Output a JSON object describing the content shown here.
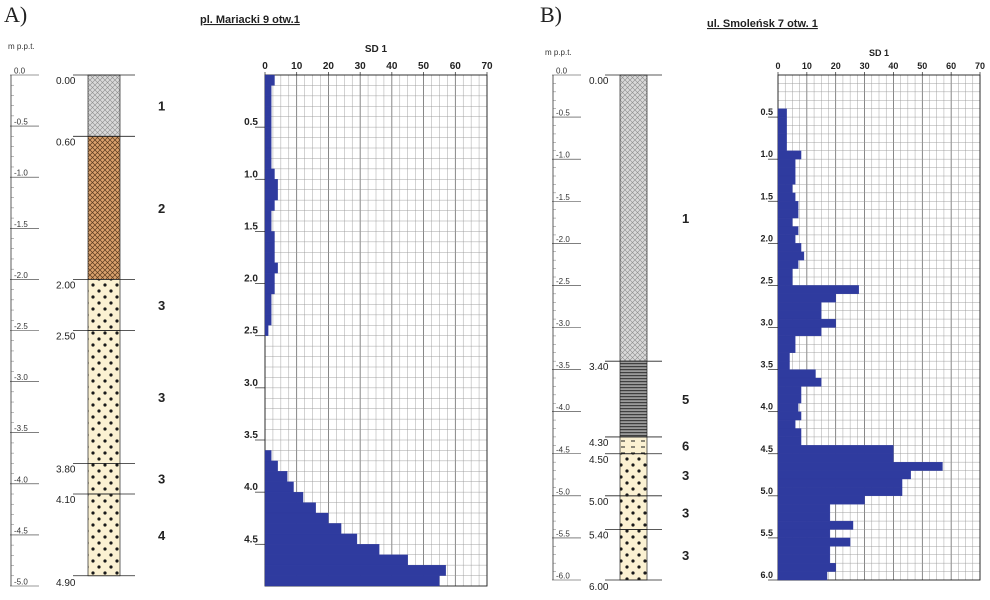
{
  "panels": [
    {
      "label": "A)",
      "title": "pl. Mariacki 9  otw.1",
      "scale_unit": "m p.p.t.",
      "depth_max": 5.0,
      "depth_ticks": [
        "0.0",
        "-0.5",
        "-1.0",
        "-1.5",
        "-2.0",
        "-2.5",
        "-3.0",
        "-3.5",
        "-4.0",
        "-4.5",
        "-5.0"
      ],
      "layers": [
        {
          "top": 0.0,
          "bottom": 0.6,
          "pattern": "gray-cross",
          "top_label": "0.00",
          "number": "1"
        },
        {
          "top": 0.6,
          "bottom": 2.0,
          "pattern": "brown-cross",
          "top_label": "0.60",
          "number": "2"
        },
        {
          "top": 2.0,
          "bottom": 2.5,
          "pattern": "sand-dots",
          "top_label": "2.00",
          "number": "3"
        },
        {
          "top": 2.5,
          "bottom": 3.8,
          "pattern": "sand-dots",
          "top_label": "2.50",
          "number": "3"
        },
        {
          "top": 3.8,
          "bottom": 4.1,
          "pattern": "sand-dots",
          "top_label": "3.80",
          "number": "3"
        },
        {
          "top": 4.1,
          "bottom": 4.9,
          "pattern": "sand-dots",
          "top_label": "4.10",
          "number": "4"
        }
      ],
      "bottom_label": "4.90"
    },
    {
      "label": "B)",
      "title": "ul. Smoleńsk 7  otw. 1",
      "scale_unit": "m p.p.t.",
      "depth_max": 6.0,
      "depth_ticks": [
        "0.0",
        "-0.5",
        "-1.0",
        "-1.5",
        "-2.0",
        "-2.5",
        "-3.0",
        "-3.5",
        "-4.0",
        "-4.5",
        "-5.0",
        "-5.5",
        "-6.0"
      ],
      "layers": [
        {
          "top": 0.0,
          "bottom": 3.4,
          "pattern": "gray-cross",
          "top_label": "0.00",
          "number": "1"
        },
        {
          "top": 3.4,
          "bottom": 4.3,
          "pattern": "gray-lines",
          "top_label": "3.40",
          "number": "5"
        },
        {
          "top": 4.3,
          "bottom": 4.5,
          "pattern": "dash-sand",
          "top_label": "4.30",
          "number": "6"
        },
        {
          "top": 4.5,
          "bottom": 5.0,
          "pattern": "sand-dots",
          "top_label": "4.50",
          "number": "3"
        },
        {
          "top": 5.0,
          "bottom": 5.4,
          "pattern": "sand-dots",
          "top_label": "5.00",
          "number": "3"
        },
        {
          "top": 5.4,
          "bottom": 6.0,
          "pattern": "sand-dots",
          "top_label": "5.40",
          "number": "3"
        }
      ],
      "bottom_label": "6.00"
    }
  ],
  "colors": {
    "bar": "#2f3b9f",
    "grid": "#8a8a8a",
    "gray_fill": "#d9d9d9",
    "brown_fill": "#d9a16d",
    "sand_fill": "#fbf1d2",
    "lines_fill": "#4d4d4d"
  },
  "chart_data": [
    {
      "type": "bar",
      "orientation": "horizontal",
      "title": "SD 1",
      "xlim": [
        0,
        70
      ],
      "x_ticks": [
        "0",
        "10",
        "20",
        "30",
        "40",
        "50",
        "60",
        "70"
      ],
      "ylim": [
        0,
        4.9
      ],
      "y_ticks": [
        "0.5",
        "1.0",
        "1.5",
        "2.0",
        "2.5",
        "3.0",
        "3.5",
        "4.0",
        "4.5"
      ],
      "depth": [
        0.0,
        0.1,
        0.2,
        0.3,
        0.4,
        0.5,
        0.6,
        0.7,
        0.8,
        0.9,
        1.0,
        1.1,
        1.2,
        1.3,
        1.4,
        1.5,
        1.6,
        1.7,
        1.8,
        1.9,
        2.0,
        2.1,
        2.2,
        2.3,
        2.4,
        2.5,
        2.6,
        2.7,
        2.8,
        2.9,
        3.0,
        3.1,
        3.2,
        3.3,
        3.4,
        3.5,
        3.6,
        3.7,
        3.8,
        3.9,
        4.0,
        4.1,
        4.2,
        4.3,
        4.4,
        4.5,
        4.6,
        4.7,
        4.8
      ],
      "values": [
        3,
        2,
        2,
        2,
        2,
        2,
        2,
        2,
        2,
        3,
        4,
        4,
        3,
        2,
        2,
        3,
        3,
        3,
        4,
        3,
        3,
        2,
        2,
        2,
        1,
        0,
        0,
        0,
        0,
        0,
        0,
        0,
        0,
        0,
        0,
        0,
        2,
        4,
        7,
        9,
        12,
        16,
        20,
        24,
        29,
        36,
        45,
        57,
        55
      ]
    },
    {
      "type": "bar",
      "orientation": "horizontal",
      "title": "SD 1",
      "xlim": [
        0,
        70
      ],
      "x_ticks": [
        "0",
        "10",
        "20",
        "30",
        "40",
        "50",
        "60",
        "70"
      ],
      "ylim": [
        0,
        6.0
      ],
      "y_ticks": [
        "0.5",
        "1.0",
        "1.5",
        "2.0",
        "2.5",
        "3.0",
        "3.5",
        "4.0",
        "4.5",
        "5.0",
        "5.5",
        "6.0"
      ],
      "depth": [
        0.4,
        0.5,
        0.6,
        0.7,
        0.8,
        0.9,
        1.0,
        1.1,
        1.2,
        1.3,
        1.4,
        1.5,
        1.6,
        1.7,
        1.8,
        1.9,
        2.0,
        2.1,
        2.2,
        2.3,
        2.4,
        2.5,
        2.6,
        2.7,
        2.8,
        2.9,
        3.0,
        3.1,
        3.2,
        3.3,
        3.4,
        3.5,
        3.6,
        3.7,
        3.8,
        3.9,
        4.0,
        4.1,
        4.2,
        4.3,
        4.4,
        4.5,
        4.6,
        4.7,
        4.8,
        4.9,
        5.0,
        5.1,
        5.2,
        5.3,
        5.4,
        5.5,
        5.6,
        5.7,
        5.8,
        5.9
      ],
      "values": [
        3,
        3,
        3,
        3,
        3,
        8,
        6,
        6,
        6,
        5,
        6,
        7,
        7,
        5,
        7,
        6,
        8,
        9,
        7,
        5,
        5,
        28,
        20,
        15,
        15,
        20,
        15,
        6,
        6,
        4,
        4,
        13,
        15,
        8,
        8,
        7,
        8,
        6,
        8,
        8,
        40,
        40,
        57,
        46,
        43,
        43,
        30,
        18,
        18,
        26,
        18,
        25,
        18,
        18,
        20,
        17
      ]
    }
  ]
}
